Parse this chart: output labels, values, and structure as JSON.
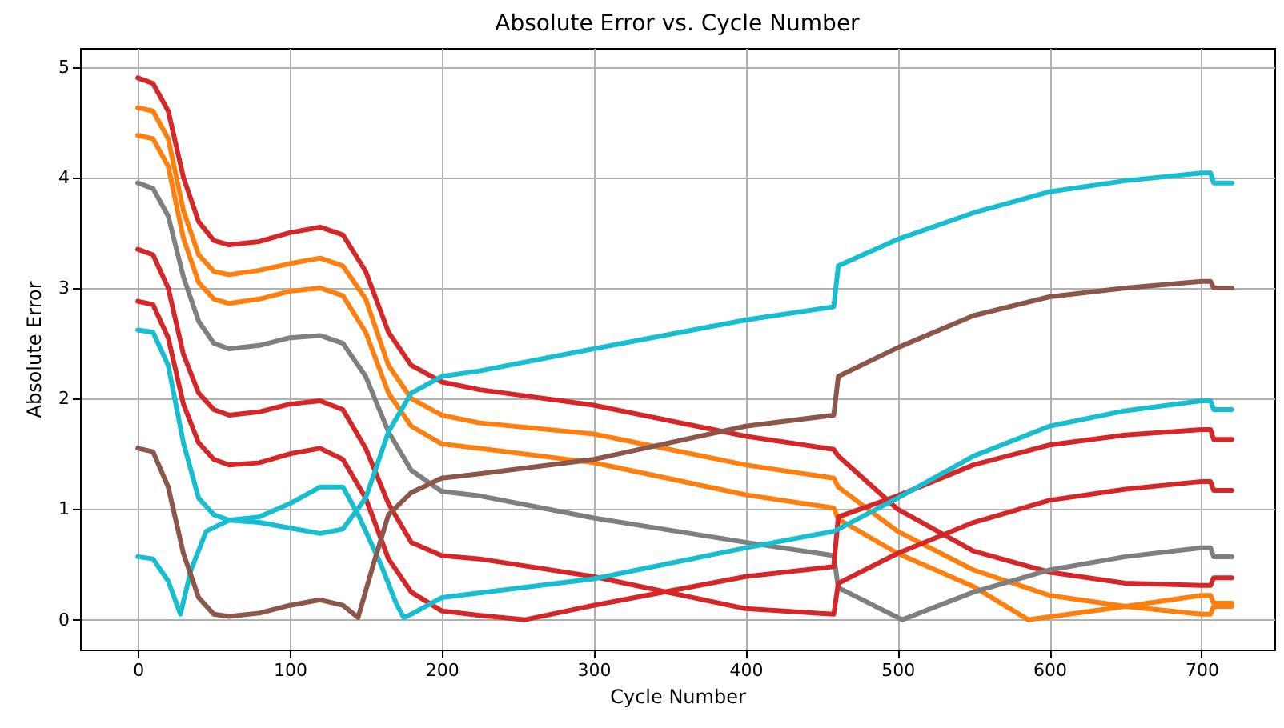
{
  "chart_data": {
    "type": "line",
    "title": "Absolute Error vs. Cycle Number",
    "xlabel": "Cycle Number",
    "ylabel": "Absolute Error",
    "xlim": [
      -38,
      748
    ],
    "xticks": [
      0,
      100,
      200,
      300,
      400,
      500,
      600,
      700
    ],
    "ylim": [
      -0.27,
      5.17
    ],
    "yticks": [
      0,
      1,
      2,
      3,
      4,
      5
    ],
    "grid": true,
    "line_style": "solid",
    "series": [
      {
        "color": "#d62728",
        "x": [
          0,
          10,
          20,
          30,
          40,
          50,
          60,
          80,
          100,
          120,
          135,
          150,
          165,
          180,
          200,
          225,
          300,
          400,
          458,
          461,
          500,
          550,
          600,
          650,
          700,
          706,
          708,
          720
        ],
        "values": [
          4.9,
          4.85,
          4.6,
          4.0,
          3.6,
          3.43,
          3.39,
          3.42,
          3.5,
          3.55,
          3.48,
          3.15,
          2.6,
          2.3,
          2.15,
          2.08,
          1.94,
          1.66,
          1.54,
          1.48,
          1.0,
          0.62,
          0.43,
          0.33,
          0.31,
          0.31,
          0.38,
          0.38
        ]
      },
      {
        "color": "#ff7f0e",
        "x": [
          0,
          10,
          20,
          30,
          40,
          50,
          60,
          80,
          100,
          120,
          135,
          150,
          165,
          180,
          200,
          225,
          300,
          400,
          458,
          461,
          500,
          550,
          600,
          650,
          700,
          706,
          708,
          720
        ],
        "values": [
          4.63,
          4.6,
          4.35,
          3.7,
          3.3,
          3.15,
          3.12,
          3.16,
          3.22,
          3.27,
          3.2,
          2.9,
          2.3,
          2.0,
          1.85,
          1.78,
          1.68,
          1.4,
          1.28,
          1.2,
          0.8,
          0.45,
          0.22,
          0.12,
          0.05,
          0.05,
          0.12,
          0.12
        ]
      },
      {
        "color": "#ff7f0e",
        "x": [
          0,
          10,
          20,
          30,
          40,
          50,
          60,
          80,
          100,
          120,
          135,
          150,
          165,
          180,
          200,
          225,
          300,
          400,
          458,
          461,
          500,
          550,
          586,
          650,
          700,
          706,
          708,
          720
        ],
        "values": [
          4.38,
          4.35,
          4.1,
          3.45,
          3.05,
          2.9,
          2.86,
          2.9,
          2.97,
          3.0,
          2.93,
          2.6,
          2.05,
          1.75,
          1.59,
          1.55,
          1.42,
          1.13,
          1.01,
          0.91,
          0.6,
          0.3,
          0.0,
          0.12,
          0.22,
          0.22,
          0.15,
          0.15
        ]
      },
      {
        "color": "#7f7f7f",
        "x": [
          0,
          10,
          20,
          30,
          40,
          50,
          60,
          80,
          100,
          120,
          135,
          150,
          165,
          180,
          200,
          225,
          300,
          400,
          458,
          461,
          503,
          550,
          600,
          650,
          700,
          706,
          708,
          720
        ],
        "values": [
          3.95,
          3.9,
          3.65,
          3.1,
          2.7,
          2.5,
          2.45,
          2.48,
          2.55,
          2.57,
          2.5,
          2.2,
          1.7,
          1.35,
          1.16,
          1.12,
          0.92,
          0.7,
          0.58,
          0.29,
          0.0,
          0.25,
          0.45,
          0.57,
          0.65,
          0.65,
          0.57,
          0.57
        ]
      },
      {
        "color": "#d62728",
        "x": [
          0,
          10,
          20,
          30,
          40,
          50,
          60,
          80,
          100,
          120,
          135,
          150,
          165,
          180,
          200,
          225,
          300,
          400,
          458,
          461,
          500,
          550,
          600,
          650,
          700,
          706,
          708,
          720
        ],
        "values": [
          3.35,
          3.3,
          3.0,
          2.4,
          2.05,
          1.9,
          1.85,
          1.88,
          1.95,
          1.98,
          1.9,
          1.55,
          1.05,
          0.7,
          0.58,
          0.55,
          0.39,
          0.1,
          0.05,
          0.33,
          0.6,
          0.88,
          1.08,
          1.18,
          1.25,
          1.25,
          1.17,
          1.17
        ]
      },
      {
        "color": "#d62728",
        "x": [
          0,
          10,
          20,
          30,
          40,
          50,
          60,
          80,
          100,
          120,
          135,
          150,
          165,
          180,
          200,
          225,
          255,
          300,
          400,
          458,
          461,
          500,
          550,
          600,
          650,
          700,
          706,
          708,
          720
        ],
        "values": [
          2.88,
          2.85,
          2.55,
          1.95,
          1.6,
          1.45,
          1.4,
          1.42,
          1.5,
          1.55,
          1.45,
          1.1,
          0.55,
          0.25,
          0.08,
          0.04,
          0.0,
          0.13,
          0.39,
          0.48,
          0.93,
          1.12,
          1.4,
          1.58,
          1.67,
          1.72,
          1.72,
          1.63,
          1.63
        ]
      },
      {
        "color": "#17becf",
        "x": [
          0,
          10,
          20,
          30,
          40,
          50,
          60,
          80,
          100,
          120,
          135,
          145,
          160,
          170,
          175,
          180,
          200,
          300,
          400,
          458,
          461,
          500,
          550,
          600,
          650,
          700,
          706,
          708,
          720
        ],
        "values": [
          2.62,
          2.6,
          2.3,
          1.6,
          1.1,
          0.95,
          0.9,
          0.93,
          1.05,
          1.2,
          1.2,
          0.95,
          0.5,
          0.15,
          0.02,
          0.05,
          0.2,
          0.37,
          0.65,
          0.8,
          0.82,
          1.1,
          1.48,
          1.75,
          1.89,
          1.98,
          1.98,
          1.9,
          1.9
        ]
      },
      {
        "color": "#17becf",
        "x": [
          0,
          10,
          20,
          28,
          35,
          45,
          60,
          80,
          100,
          120,
          135,
          150,
          165,
          180,
          200,
          225,
          300,
          400,
          458,
          461,
          500,
          550,
          600,
          650,
          700,
          706,
          708,
          720
        ],
        "values": [
          0.57,
          0.55,
          0.35,
          0.05,
          0.45,
          0.8,
          0.9,
          0.88,
          0.83,
          0.78,
          0.82,
          1.1,
          1.7,
          2.05,
          2.2,
          2.25,
          2.45,
          2.71,
          2.83,
          3.2,
          3.44,
          3.68,
          3.87,
          3.97,
          4.04,
          4.04,
          3.95,
          3.95
        ]
      },
      {
        "color": "#8c564b",
        "x": [
          0,
          10,
          20,
          30,
          40,
          50,
          60,
          80,
          100,
          120,
          135,
          145,
          155,
          165,
          180,
          200,
          225,
          300,
          400,
          458,
          461,
          500,
          550,
          600,
          650,
          700,
          706,
          708,
          720
        ],
        "values": [
          1.55,
          1.52,
          1.2,
          0.6,
          0.2,
          0.05,
          0.03,
          0.06,
          0.13,
          0.18,
          0.13,
          0.02,
          0.5,
          0.95,
          1.15,
          1.28,
          1.32,
          1.45,
          1.75,
          1.85,
          2.2,
          2.46,
          2.75,
          2.92,
          3.0,
          3.06,
          3.06,
          3.0,
          3.0
        ]
      }
    ]
  }
}
